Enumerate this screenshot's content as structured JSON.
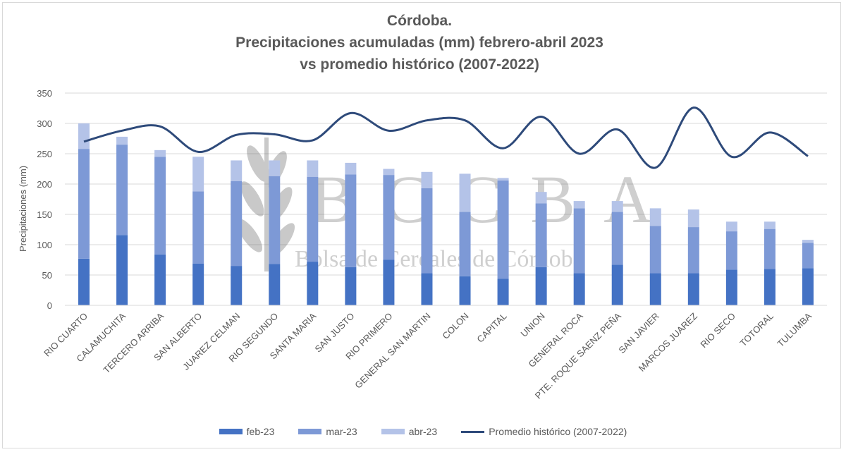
{
  "chart_data": {
    "type": "bar",
    "stacked": true,
    "title": [
      "Córdoba.",
      "Precipitaciones acumuladas (mm) febrero-abril 2023",
      "vs promedio histórico (2007-2022)"
    ],
    "ylabel": "Precipitaciones (mm)",
    "xlabel": "",
    "ylim": [
      0,
      350
    ],
    "yticks": [
      0,
      50,
      100,
      150,
      200,
      250,
      300,
      350
    ],
    "grid": true,
    "legend_position": "bottom",
    "categories": [
      "RIO CUARTO",
      "CALAMUCHITA",
      "TERCERO ARRIBA",
      "SAN ALBERTO",
      "JUAREZ CELMAN",
      "RIO SEGUNDO",
      "SANTA MARIA",
      "SAN JUSTO",
      "RIO PRIMERO",
      "GENERAL SAN MARTIN",
      "COLON",
      "CAPITAL",
      "UNION",
      "GENERAL ROCA",
      "PTE. ROQUE SAENZ PEÑA",
      "SAN JAVIER",
      "MARCOS JUAREZ",
      "RIO SECO",
      "TOTORAL",
      "TULUMBA"
    ],
    "series": [
      {
        "name": "feb-23",
        "type": "bar",
        "color": "#4472c4",
        "values": [
          77,
          116,
          84,
          69,
          65,
          68,
          72,
          63,
          75,
          53,
          48,
          44,
          63,
          53,
          67,
          53,
          53,
          59,
          60,
          61
        ]
      },
      {
        "name": "mar-23",
        "type": "bar",
        "color": "#7d99d6",
        "values": [
          181,
          149,
          161,
          119,
          140,
          145,
          140,
          153,
          140,
          140,
          106,
          162,
          105,
          107,
          87,
          78,
          76,
          63,
          66,
          42
        ]
      },
      {
        "name": "abr-23",
        "type": "bar",
        "color": "#b4c3e8",
        "values": [
          42,
          13,
          11,
          57,
          34,
          26,
          27,
          19,
          10,
          27,
          63,
          4,
          19,
          12,
          18,
          29,
          29,
          16,
          12,
          5
        ]
      },
      {
        "name": "Promedio histórico (2007-2022)",
        "type": "line",
        "color": "#2e4a7a",
        "values": [
          270,
          288,
          295,
          253,
          281,
          282,
          272,
          317,
          288,
          305,
          305,
          259,
          311,
          250,
          290,
          227,
          326,
          245,
          285,
          246
        ]
      }
    ]
  },
  "watermark": {
    "logo_text": "BCCBA",
    "subtitle": "Bolsa de Cereales de Córdoba"
  }
}
